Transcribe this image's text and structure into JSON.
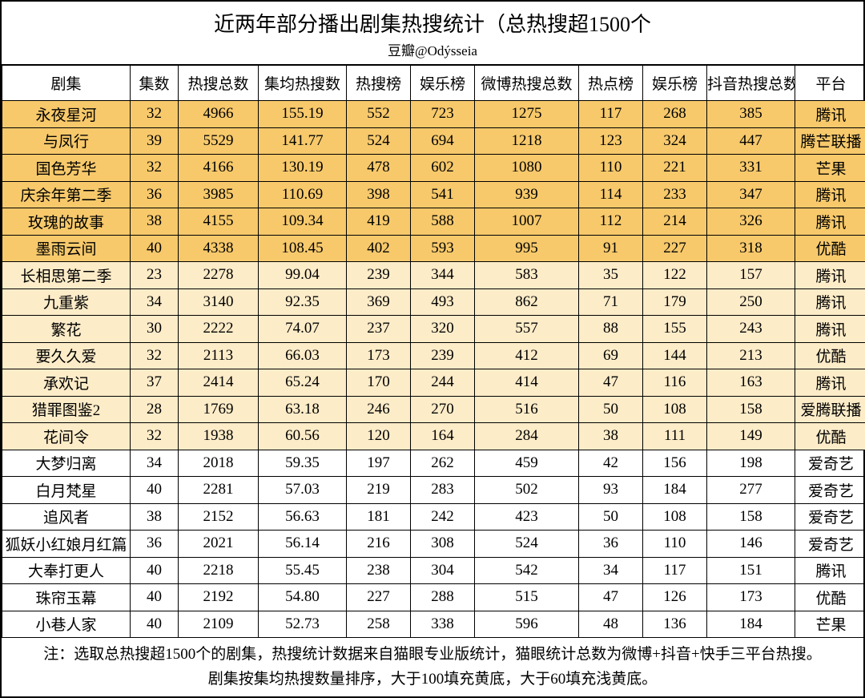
{
  "title": "近两年部分播出剧集热搜统计（总热搜超1500个",
  "subtitle": "豆瓣@Odýsseia",
  "colors": {
    "highlight_dark": "#f7c96b",
    "highlight_light": "#fdecc8",
    "background": "#ffffff",
    "border": "#000000"
  },
  "thresholds": {
    "dark_min": 100,
    "light_min": 60
  },
  "columns": [
    {
      "key": "name",
      "label": "剧集",
      "width": 160
    },
    {
      "key": "episodes",
      "label": "集数",
      "width": 60
    },
    {
      "key": "total",
      "label": "热搜总数",
      "width": 100
    },
    {
      "key": "avg",
      "label": "集均热搜数",
      "width": 110
    },
    {
      "key": "hot_list",
      "label": "热搜榜",
      "width": 80
    },
    {
      "key": "ent_list",
      "label": "娱乐榜",
      "width": 80
    },
    {
      "key": "weibo",
      "label": "微博热搜总数",
      "width": 130
    },
    {
      "key": "hotspot",
      "label": "热点榜",
      "width": 80
    },
    {
      "key": "ent_list2",
      "label": "娱乐榜",
      "width": 80
    },
    {
      "key": "douyin",
      "label": "抖音热搜总数",
      "width": 110
    },
    {
      "key": "platform",
      "label": "平台",
      "width": 90
    }
  ],
  "rows": [
    {
      "name": "永夜星河",
      "episodes": 32,
      "total": 4966,
      "avg": "155.19",
      "hot_list": 552,
      "ent_list": 723,
      "weibo": 1275,
      "hotspot": 117,
      "ent_list2": 268,
      "douyin": 385,
      "platform": "腾讯"
    },
    {
      "name": "与凤行",
      "episodes": 39,
      "total": 5529,
      "avg": "141.77",
      "hot_list": 524,
      "ent_list": 694,
      "weibo": 1218,
      "hotspot": 123,
      "ent_list2": 324,
      "douyin": 447,
      "platform": "腾芒联播"
    },
    {
      "name": "国色芳华",
      "episodes": 32,
      "total": 4166,
      "avg": "130.19",
      "hot_list": 478,
      "ent_list": 602,
      "weibo": 1080,
      "hotspot": 110,
      "ent_list2": 221,
      "douyin": 331,
      "platform": "芒果"
    },
    {
      "name": "庆余年第二季",
      "episodes": 36,
      "total": 3985,
      "avg": "110.69",
      "hot_list": 398,
      "ent_list": 541,
      "weibo": 939,
      "hotspot": 114,
      "ent_list2": 233,
      "douyin": 347,
      "platform": "腾讯"
    },
    {
      "name": "玫瑰的故事",
      "episodes": 38,
      "total": 4155,
      "avg": "109.34",
      "hot_list": 419,
      "ent_list": 588,
      "weibo": 1007,
      "hotspot": 112,
      "ent_list2": 214,
      "douyin": 326,
      "platform": "腾讯"
    },
    {
      "name": "墨雨云间",
      "episodes": 40,
      "total": 4338,
      "avg": "108.45",
      "hot_list": 402,
      "ent_list": 593,
      "weibo": 995,
      "hotspot": 91,
      "ent_list2": 227,
      "douyin": 318,
      "platform": "优酷"
    },
    {
      "name": "长相思第二季",
      "episodes": 23,
      "total": 2278,
      "avg": "99.04",
      "hot_list": 239,
      "ent_list": 344,
      "weibo": 583,
      "hotspot": 35,
      "ent_list2": 122,
      "douyin": 157,
      "platform": "腾讯"
    },
    {
      "name": "九重紫",
      "episodes": 34,
      "total": 3140,
      "avg": "92.35",
      "hot_list": 369,
      "ent_list": 493,
      "weibo": 862,
      "hotspot": 71,
      "ent_list2": 179,
      "douyin": 250,
      "platform": "腾讯"
    },
    {
      "name": "繁花",
      "episodes": 30,
      "total": 2222,
      "avg": "74.07",
      "hot_list": 237,
      "ent_list": 320,
      "weibo": 557,
      "hotspot": 88,
      "ent_list2": 155,
      "douyin": 243,
      "platform": "腾讯"
    },
    {
      "name": "要久久爱",
      "episodes": 32,
      "total": 2113,
      "avg": "66.03",
      "hot_list": 173,
      "ent_list": 239,
      "weibo": 412,
      "hotspot": 69,
      "ent_list2": 144,
      "douyin": 213,
      "platform": "优酷"
    },
    {
      "name": "承欢记",
      "episodes": 37,
      "total": 2414,
      "avg": "65.24",
      "hot_list": 170,
      "ent_list": 244,
      "weibo": 414,
      "hotspot": 47,
      "ent_list2": 116,
      "douyin": 163,
      "platform": "腾讯"
    },
    {
      "name": "猎罪图鉴2",
      "episodes": 28,
      "total": 1769,
      "avg": "63.18",
      "hot_list": 246,
      "ent_list": 270,
      "weibo": 516,
      "hotspot": 50,
      "ent_list2": 108,
      "douyin": 158,
      "platform": "爱腾联播"
    },
    {
      "name": "花间令",
      "episodes": 32,
      "total": 1938,
      "avg": "60.56",
      "hot_list": 120,
      "ent_list": 164,
      "weibo": 284,
      "hotspot": 38,
      "ent_list2": 111,
      "douyin": 149,
      "platform": "优酷"
    },
    {
      "name": "大梦归离",
      "episodes": 34,
      "total": 2018,
      "avg": "59.35",
      "hot_list": 197,
      "ent_list": 262,
      "weibo": 459,
      "hotspot": 42,
      "ent_list2": 156,
      "douyin": 198,
      "platform": "爱奇艺"
    },
    {
      "name": "白月梵星",
      "episodes": 40,
      "total": 2281,
      "avg": "57.03",
      "hot_list": 219,
      "ent_list": 283,
      "weibo": 502,
      "hotspot": 93,
      "ent_list2": 184,
      "douyin": 277,
      "platform": "爱奇艺"
    },
    {
      "name": "追风者",
      "episodes": 38,
      "total": 2152,
      "avg": "56.63",
      "hot_list": 181,
      "ent_list": 242,
      "weibo": 423,
      "hotspot": 50,
      "ent_list2": 108,
      "douyin": 158,
      "platform": "爱奇艺"
    },
    {
      "name": "狐妖小红娘月红篇",
      "episodes": 36,
      "total": 2021,
      "avg": "56.14",
      "hot_list": 216,
      "ent_list": 308,
      "weibo": 524,
      "hotspot": 36,
      "ent_list2": 110,
      "douyin": 146,
      "platform": "爱奇艺"
    },
    {
      "name": "大奉打更人",
      "episodes": 40,
      "total": 2218,
      "avg": "55.45",
      "hot_list": 238,
      "ent_list": 304,
      "weibo": 542,
      "hotspot": 34,
      "ent_list2": 117,
      "douyin": 151,
      "platform": "腾讯"
    },
    {
      "name": "珠帘玉幕",
      "episodes": 40,
      "total": 2192,
      "avg": "54.80",
      "hot_list": 227,
      "ent_list": 288,
      "weibo": 515,
      "hotspot": 47,
      "ent_list2": 126,
      "douyin": 173,
      "platform": "优酷"
    },
    {
      "name": "小巷人家",
      "episodes": 40,
      "total": 2109,
      "avg": "52.73",
      "hot_list": 258,
      "ent_list": 338,
      "weibo": 596,
      "hotspot": 48,
      "ent_list2": 136,
      "douyin": 184,
      "platform": "芒果"
    }
  ],
  "footnote": {
    "line1": "注：选取总热搜超1500个的剧集，热搜统计数据来自猫眼专业版统计，猫眼统计总数为微博+抖音+快手三平台热搜。",
    "line2": "剧集按集均热搜数量排序，大于100填充黄底，大于60填充浅黄底。"
  }
}
